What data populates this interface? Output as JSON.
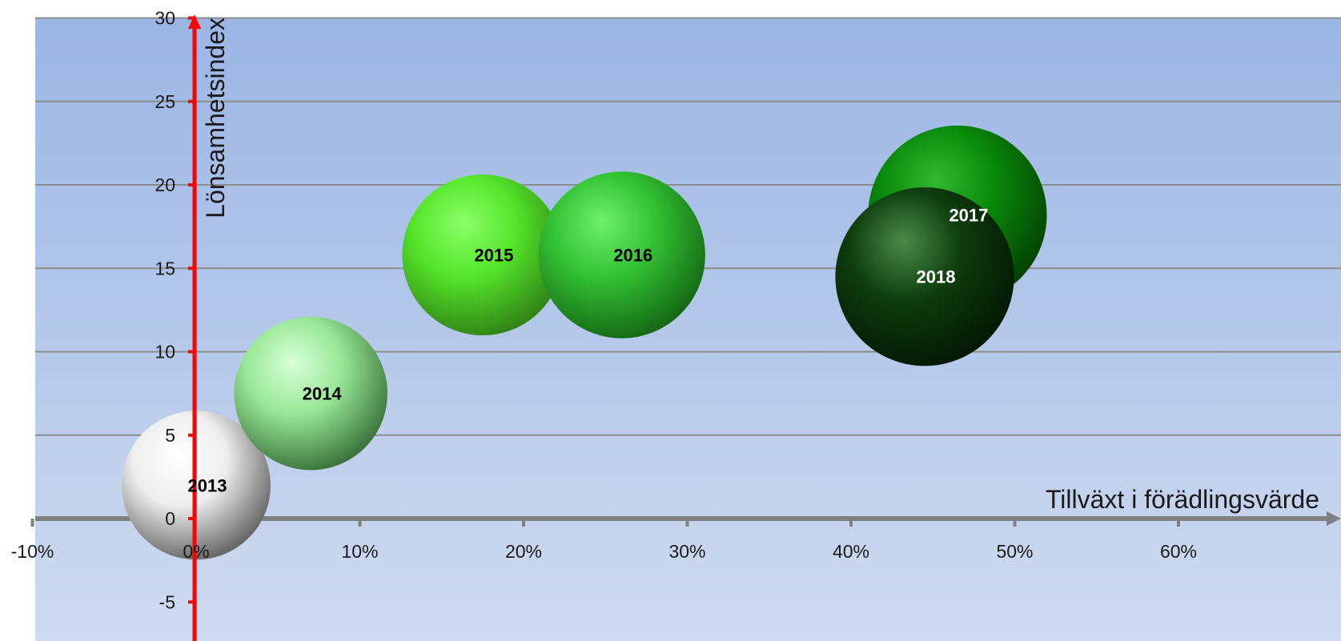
{
  "chart_data": {
    "type": "bubble",
    "xlabel": "Tillväxt i förädlingsvärde",
    "ylabel": "Lönsamhetsindex",
    "xlim": [
      -0.1,
      0.65
    ],
    "ylim": [
      -5,
      30
    ],
    "x_ticks": [
      {
        "value": -0.1,
        "label": "-10%"
      },
      {
        "value": 0.0,
        "label": "0%"
      },
      {
        "value": 0.1,
        "label": "10%"
      },
      {
        "value": 0.2,
        "label": "20%"
      },
      {
        "value": 0.3,
        "label": "30%"
      },
      {
        "value": 0.4,
        "label": "40%"
      },
      {
        "value": 0.5,
        "label": "50%"
      },
      {
        "value": 0.6,
        "label": "60%"
      }
    ],
    "y_ticks": [
      {
        "value": -5,
        "label": "-5"
      },
      {
        "value": 0,
        "label": "0"
      },
      {
        "value": 5,
        "label": "5"
      },
      {
        "value": 10,
        "label": "10"
      },
      {
        "value": 15,
        "label": "15"
      },
      {
        "value": 20,
        "label": "20"
      },
      {
        "value": 25,
        "label": "25"
      },
      {
        "value": 30,
        "label": "30"
      }
    ],
    "grid": true,
    "legend": "none",
    "colors": {
      "background_top": "#9bb5e4",
      "background_bottom": "#cfdbf0",
      "y_axis": "#ff0000",
      "x_axis": "#808080",
      "gridline": "#8c8c8c"
    },
    "points": [
      {
        "label": "2013",
        "x": 0.0,
        "y": 2.0,
        "size": 1.0,
        "color_light": "#ffffff",
        "color_mid": "#eeeeee",
        "color_dark": "#5c5c5c",
        "text_color": "#000000"
      },
      {
        "label": "2014",
        "x": 0.07,
        "y": 7.5,
        "size": 1.03,
        "color_light": "#d8ffd8",
        "color_mid": "#98e898",
        "color_dark": "#356b35",
        "text_color": "#000000"
      },
      {
        "label": "2015",
        "x": 0.175,
        "y": 15.8,
        "size": 1.08,
        "color_light": "#8cff6a",
        "color_mid": "#55e62a",
        "color_dark": "#2e7d14",
        "text_color": "#000000"
      },
      {
        "label": "2016",
        "x": 0.26,
        "y": 15.8,
        "size": 1.12,
        "color_light": "#6ef06e",
        "color_mid": "#33c233",
        "color_dark": "#136213",
        "text_color": "#000000"
      },
      {
        "label": "2017",
        "x": 0.465,
        "y": 18.2,
        "size": 1.2,
        "color_light": "#33b833",
        "color_mid": "#0a8a0a",
        "color_dark": "#033d03",
        "text_color": "#ffffff"
      },
      {
        "label": "2018",
        "x": 0.445,
        "y": 14.5,
        "size": 1.2,
        "color_light": "#4a8a4a",
        "color_mid": "#0e3d0e",
        "color_dark": "#031503",
        "text_color": "#ffffff"
      }
    ]
  }
}
